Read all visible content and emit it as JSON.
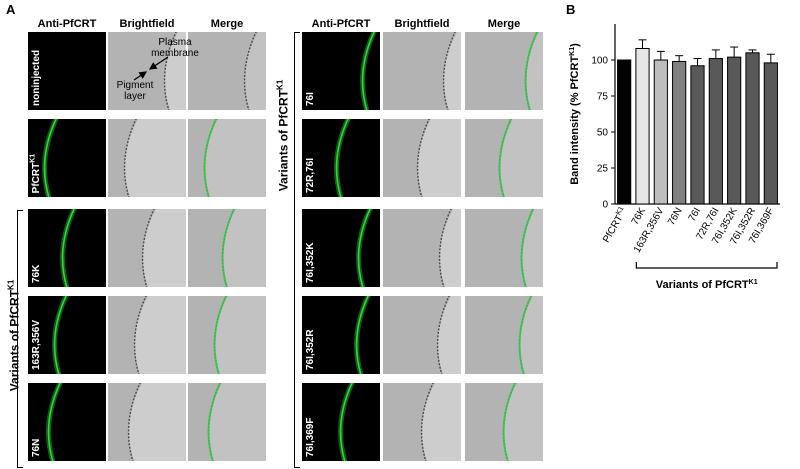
{
  "panel_a_letter": "A",
  "panel_b_letter": "B",
  "column_headers": {
    "fluor": "Anti-PfCRT",
    "bright": "Brightfield",
    "merge": "Merge"
  },
  "left_rows": [
    {
      "label": "noninjected"
    },
    {
      "label": "PfCRT",
      "sup": "K1"
    },
    {
      "label": "76K"
    },
    {
      "label": "163R,356V"
    },
    {
      "label": "76N"
    }
  ],
  "right_rows": [
    {
      "label": "76I"
    },
    {
      "label": "72R,76I"
    },
    {
      "label": "76I,352K"
    },
    {
      "label": "76I,352R"
    },
    {
      "label": "76I,369F"
    }
  ],
  "annotations": {
    "plasma_membrane": "Plasma membrane",
    "pigment_layer": "Pigment layer"
  },
  "group_label": {
    "text": "Variants of PfCRT",
    "sup": "K1"
  },
  "chart_data": {
    "type": "bar",
    "categories": [
      "PfCRTK1",
      "76K",
      "163R,356V",
      "76N",
      "76I",
      "72R,76I",
      "76I,352K",
      "76I,352R",
      "76I,369F"
    ],
    "category_display": [
      {
        "text": "PfCRT",
        "sup": "K1"
      },
      {
        "text": "76K",
        "sup": ""
      },
      {
        "text": "163R,356V",
        "sup": ""
      },
      {
        "text": "76N",
        "sup": ""
      },
      {
        "text": "76I",
        "sup": ""
      },
      {
        "text": "72R,76I",
        "sup": ""
      },
      {
        "text": "76I,352K",
        "sup": ""
      },
      {
        "text": "76I,352R",
        "sup": ""
      },
      {
        "text": "76I,369F",
        "sup": ""
      }
    ],
    "values": [
      100,
      108,
      100,
      99,
      96,
      101,
      102,
      105,
      98
    ],
    "errors": [
      0,
      6,
      6,
      4,
      5,
      6,
      7,
      2,
      6
    ],
    "bar_colors": [
      "#000000",
      "#e6e6e6",
      "#bdbdbd",
      "#808080",
      "#595959",
      "#595959",
      "#595959",
      "#595959",
      "#595959"
    ],
    "ylabel": "Band intensity (% PfCRT",
    "ylabel_sup": "K1",
    "ylabel_end": ")",
    "yticks": [
      0,
      25,
      50,
      75,
      100
    ],
    "ylim": [
      0,
      125
    ],
    "bracket_label": {
      "text": "Variants of PfCRT",
      "sup": "K1"
    }
  }
}
